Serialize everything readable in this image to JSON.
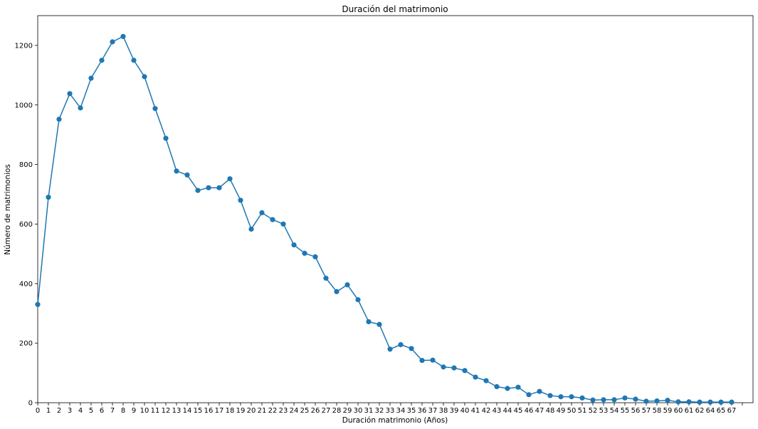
{
  "chart_data": {
    "type": "line",
    "title": "Duración del matrimonio",
    "xlabel": "Duración matrimonio (Años)",
    "ylabel": "Número de matrimonios",
    "xlim": [
      0,
      66
    ],
    "ylim": [
      0,
      1300
    ],
    "y_ticks": [
      0,
      200,
      400,
      600,
      800,
      1000,
      1200
    ],
    "x_tick_labels": [
      "0",
      "1",
      "2",
      "3",
      "4",
      "5",
      "6",
      "7",
      "8",
      "9",
      "10",
      "11",
      "12",
      "13",
      "14",
      "15",
      "16",
      "17",
      "18",
      "19",
      "20",
      "21",
      "22",
      "23",
      "24",
      "25",
      "26",
      "27",
      "28",
      "29",
      "30",
      "31",
      "32",
      "33",
      "34",
      "35",
      "36",
      "37",
      "38",
      "39",
      "40",
      "41",
      "42",
      "43",
      "44",
      "45",
      "46",
      "47",
      "48",
      "49",
      "50",
      "51",
      "52",
      "53",
      "54",
      "55",
      "56",
      "57",
      "58",
      "59",
      "60",
      "61",
      "62",
      "64",
      "65",
      "67",
      ""
    ],
    "grid": false,
    "series_color": "#1f77b4",
    "series": [
      {
        "values": [
          330,
          690,
          952,
          1038,
          990,
          1090,
          1150,
          1212,
          1230,
          1150,
          1095,
          988,
          888,
          778,
          765,
          713,
          722,
          722,
          752,
          680,
          583,
          638,
          615,
          600,
          530,
          502,
          490,
          418,
          373,
          396,
          346,
          272,
          263,
          180,
          195,
          182,
          142,
          143,
          120,
          117,
          108,
          86,
          74,
          54,
          48,
          52,
          27,
          38,
          24,
          20,
          20,
          16,
          9,
          10,
          10,
          16,
          12,
          5,
          6,
          8,
          3,
          3,
          2,
          2,
          2,
          2
        ]
      }
    ]
  }
}
